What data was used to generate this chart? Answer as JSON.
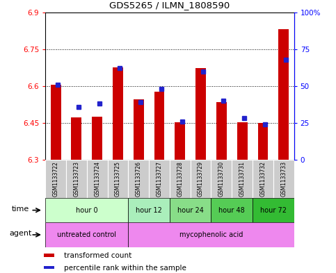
{
  "title": "GDS5265 / ILMN_1808590",
  "samples": [
    "GSM1133722",
    "GSM1133723",
    "GSM1133724",
    "GSM1133725",
    "GSM1133726",
    "GSM1133727",
    "GSM1133728",
    "GSM1133729",
    "GSM1133730",
    "GSM1133731",
    "GSM1133732",
    "GSM1133733"
  ],
  "transformed_counts": [
    6.604,
    6.472,
    6.476,
    6.677,
    6.546,
    6.578,
    6.453,
    6.672,
    6.535,
    6.453,
    6.45,
    6.83
  ],
  "percentile_ranks": [
    51,
    36,
    38,
    62,
    39,
    48,
    26,
    60,
    40,
    28,
    24,
    68
  ],
  "ylim_left": [
    6.3,
    6.9
  ],
  "yticks_left": [
    6.3,
    6.45,
    6.6,
    6.75,
    6.9
  ],
  "ytick_labels_left": [
    "6.3",
    "6.45",
    "6.6",
    "6.75",
    "6.9"
  ],
  "ylim_right": [
    0,
    100
  ],
  "yticks_right": [
    0,
    25,
    50,
    75,
    100
  ],
  "ytick_labels_right": [
    "0",
    "25",
    "50",
    "75",
    "100%"
  ],
  "bar_bottom": 6.3,
  "bar_color": "#cc0000",
  "percentile_color": "#2222cc",
  "time_groups": [
    {
      "label": "hour 0",
      "start": 0,
      "end": 4,
      "color": "#ccffcc"
    },
    {
      "label": "hour 12",
      "start": 4,
      "end": 6,
      "color": "#aaeebb"
    },
    {
      "label": "hour 24",
      "start": 6,
      "end": 8,
      "color": "#88dd88"
    },
    {
      "label": "hour 48",
      "start": 8,
      "end": 10,
      "color": "#55cc55"
    },
    {
      "label": "hour 72",
      "start": 10,
      "end": 12,
      "color": "#33bb33"
    }
  ],
  "agent_untreated_color": "#ee88ee",
  "agent_myco_color": "#ee88ee",
  "sample_bg_color": "#cccccc",
  "legend_red_label": "transformed count",
  "legend_blue_label": "percentile rank within the sample",
  "time_row_label": "time",
  "agent_row_label": "agent",
  "figsize": [
    4.83,
    3.93
  ],
  "dpi": 100
}
